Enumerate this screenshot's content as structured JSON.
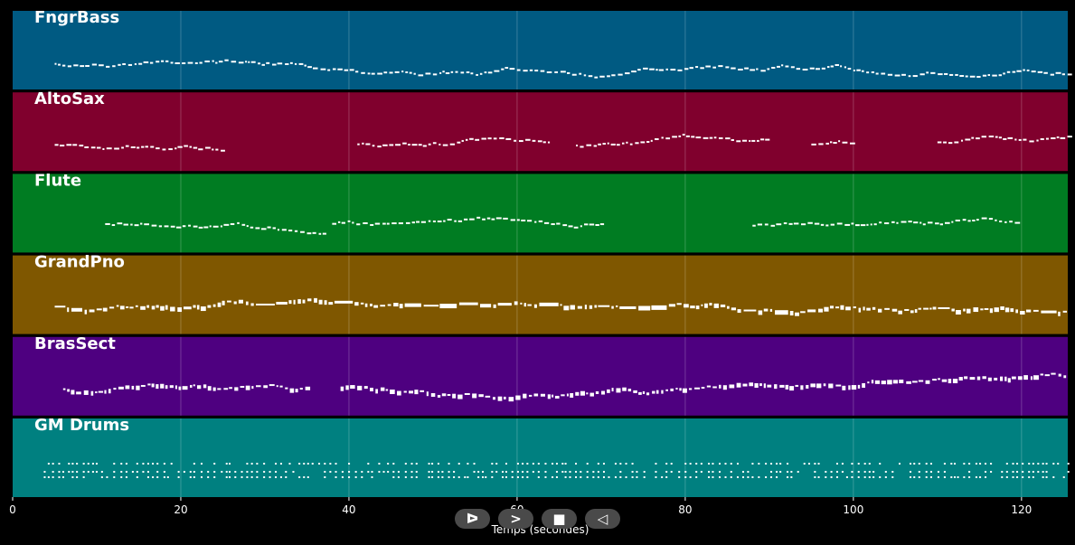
{
  "timeline": {
    "x_min": 0,
    "x_max": 125.5,
    "ticks": [
      0,
      20,
      40,
      60,
      80,
      100,
      120
    ],
    "tick_labels": [
      "0",
      "20",
      "40",
      "60",
      "80",
      "100",
      "120"
    ],
    "axis_title": "Temps (secondes)"
  },
  "tracks": [
    {
      "name": "FngrBass",
      "color": "#005a82",
      "note_color": "#ffffff"
    },
    {
      "name": "AltoSax",
      "color": "#80002d",
      "note_color": "#ffffff"
    },
    {
      "name": "Flute",
      "color": "#007c22",
      "note_color": "#ffffff"
    },
    {
      "name": "GrandPno",
      "color": "#7f5700",
      "note_color": "#ffffff"
    },
    {
      "name": "BrasSect",
      "color": "#4e0080",
      "note_color": "#ffffff"
    },
    {
      "name": "GM Drums",
      "color": "#008080",
      "note_color": "#ffffff"
    }
  ],
  "controls": [
    {
      "name": "play-button",
      "icon": "play-icon",
      "glyph": "ᐅ"
    },
    {
      "name": "forward-button",
      "icon": "forward-icon",
      "glyph": ">"
    },
    {
      "name": "stop-button",
      "icon": "stop-icon",
      "glyph": "■"
    },
    {
      "name": "rewind-button",
      "icon": "rewind-icon",
      "glyph": "◁"
    }
  ]
}
